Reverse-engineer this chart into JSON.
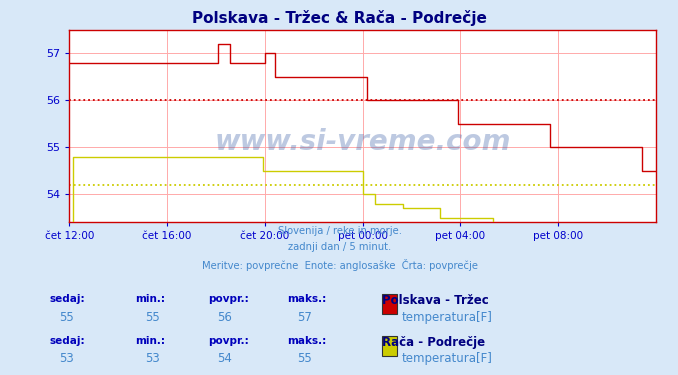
{
  "title": "Polskava - Tržec & Rača - Podrečje",
  "title_color": "#000080",
  "bg_color": "#d8e8f8",
  "plot_bg_color": "#ffffff",
  "grid_color": "#ffaaaa",
  "axis_color": "#0000cc",
  "border_color": "#cc0000",
  "subtitle_lines": [
    "Slovenija / reke in morje.",
    "zadnji dan / 5 minut.",
    "Meritve: povprečne  Enote: anglosaške  Črta: povprečje"
  ],
  "subtitle_color": "#4488cc",
  "x_tick_labels": [
    "čet 12:00",
    "čet 16:00",
    "čet 20:00",
    "pet 00:00",
    "pet 04:00",
    "pet 08:00"
  ],
  "x_tick_positions": [
    0.0,
    0.1667,
    0.3333,
    0.5,
    0.6667,
    0.8333
  ],
  "ylim": [
    53.4,
    57.5
  ],
  "yticks": [
    54,
    55,
    56,
    57
  ],
  "ylabel_color": "#0000cc",
  "watermark": "www.si-vreme.com",
  "watermark_color": "#4466aa",
  "watermark_alpha": 0.35,
  "line1_color": "#cc0000",
  "line2_color": "#cccc00",
  "avg_line1_color": "#cc0000",
  "avg_line2_color": "#cccc00",
  "avg_line1_y": 56.0,
  "avg_line2_y": 54.2,
  "legend_items": [
    {
      "label": "Polskava - Tržec",
      "sublabel": "temperatura[F]",
      "color": "#cc0000",
      "sedaj": 55,
      "min": 55,
      "povpr": 56,
      "maks": 57
    },
    {
      "label": "Rača - Podrečje",
      "sublabel": "temperatura[F]",
      "color": "#cccc00",
      "sedaj": 53,
      "min": 53,
      "povpr": 54,
      "maks": 55
    }
  ],
  "table_headers": [
    "sedaj:",
    "min.:",
    "povpr.:",
    "maks.:"
  ],
  "table_header_color": "#0000bb",
  "table_value_color": "#4488cc",
  "site_label_color": "#000080"
}
